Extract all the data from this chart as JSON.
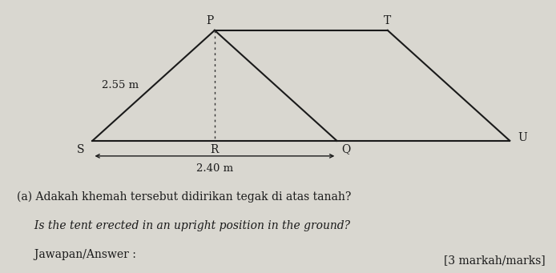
{
  "bg_color": "#d9d7d0",
  "line_color": "#1a1a1a",
  "dot_line_color": "#333333",
  "S": [
    0.0,
    0.0
  ],
  "R": [
    1.2,
    0.0
  ],
  "Q": [
    2.4,
    0.0
  ],
  "P": [
    1.2,
    1.8
  ],
  "T": [
    2.9,
    1.8
  ],
  "U": [
    4.1,
    0.0
  ],
  "label_SP": "2.55 m",
  "label_SQ": "2.40 m",
  "text_a": "(a) Adakah khemah tersebut didirikan tegak di atas tanah?",
  "text_b": "     Is the tent erected in an upright position in the ground?",
  "text_c": "     Jawapan/Answer :",
  "text_marks": "[3 markah/marks]"
}
